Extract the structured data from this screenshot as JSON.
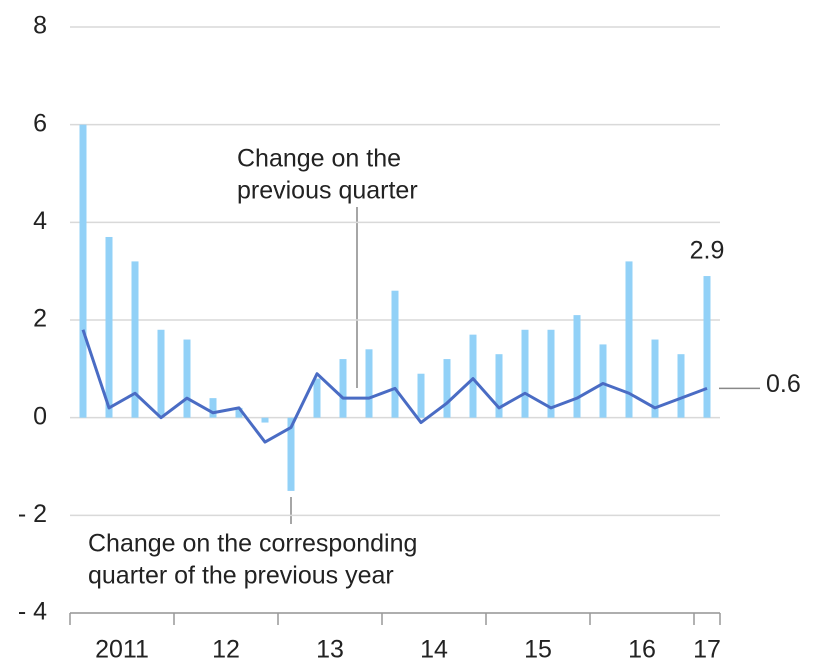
{
  "chart_data": {
    "type": "bar+line",
    "categories": [
      null,
      null,
      null,
      null,
      null,
      null,
      null,
      null,
      null,
      null,
      null,
      null,
      null,
      null,
      null,
      null,
      null,
      null,
      null,
      null,
      null,
      null,
      null,
      null,
      null
    ],
    "year_labels": [
      "2011",
      "12",
      "13",
      "14",
      "15",
      "16",
      "17"
    ],
    "series": [
      {
        "type": "bar",
        "color": "#92d1f7",
        "values": [
          6.0,
          3.7,
          3.2,
          1.8,
          1.6,
          0.4,
          0.2,
          -0.1,
          -1.5,
          0.8,
          1.2,
          1.4,
          2.6,
          0.9,
          1.2,
          1.7,
          1.3,
          1.8,
          1.8,
          2.1,
          1.5,
          3.2,
          1.6,
          1.3,
          2.9
        ]
      },
      {
        "type": "line",
        "color": "#4a6cc4",
        "values": [
          1.8,
          0.2,
          0.5,
          0.0,
          0.4,
          0.1,
          0.2,
          -0.5,
          -0.2,
          0.9,
          0.4,
          0.4,
          0.6,
          -0.1,
          0.3,
          0.8,
          0.2,
          0.5,
          0.2,
          0.4,
          0.7,
          0.5,
          0.2,
          0.4,
          0.6
        ]
      }
    ],
    "annotations": [
      {
        "lines": [
          "Change on the",
          "previous quarter"
        ]
      },
      {
        "lines": [
          "Change on the corresponding",
          "quarter of the previous year"
        ]
      }
    ],
    "ylim": [
      -4,
      8
    ],
    "yticks": [
      {
        "value": -4,
        "label": "- 4"
      },
      {
        "value": -2,
        "label": "- 2"
      },
      0,
      2,
      4,
      6,
      8
    ],
    "grid": true
  }
}
